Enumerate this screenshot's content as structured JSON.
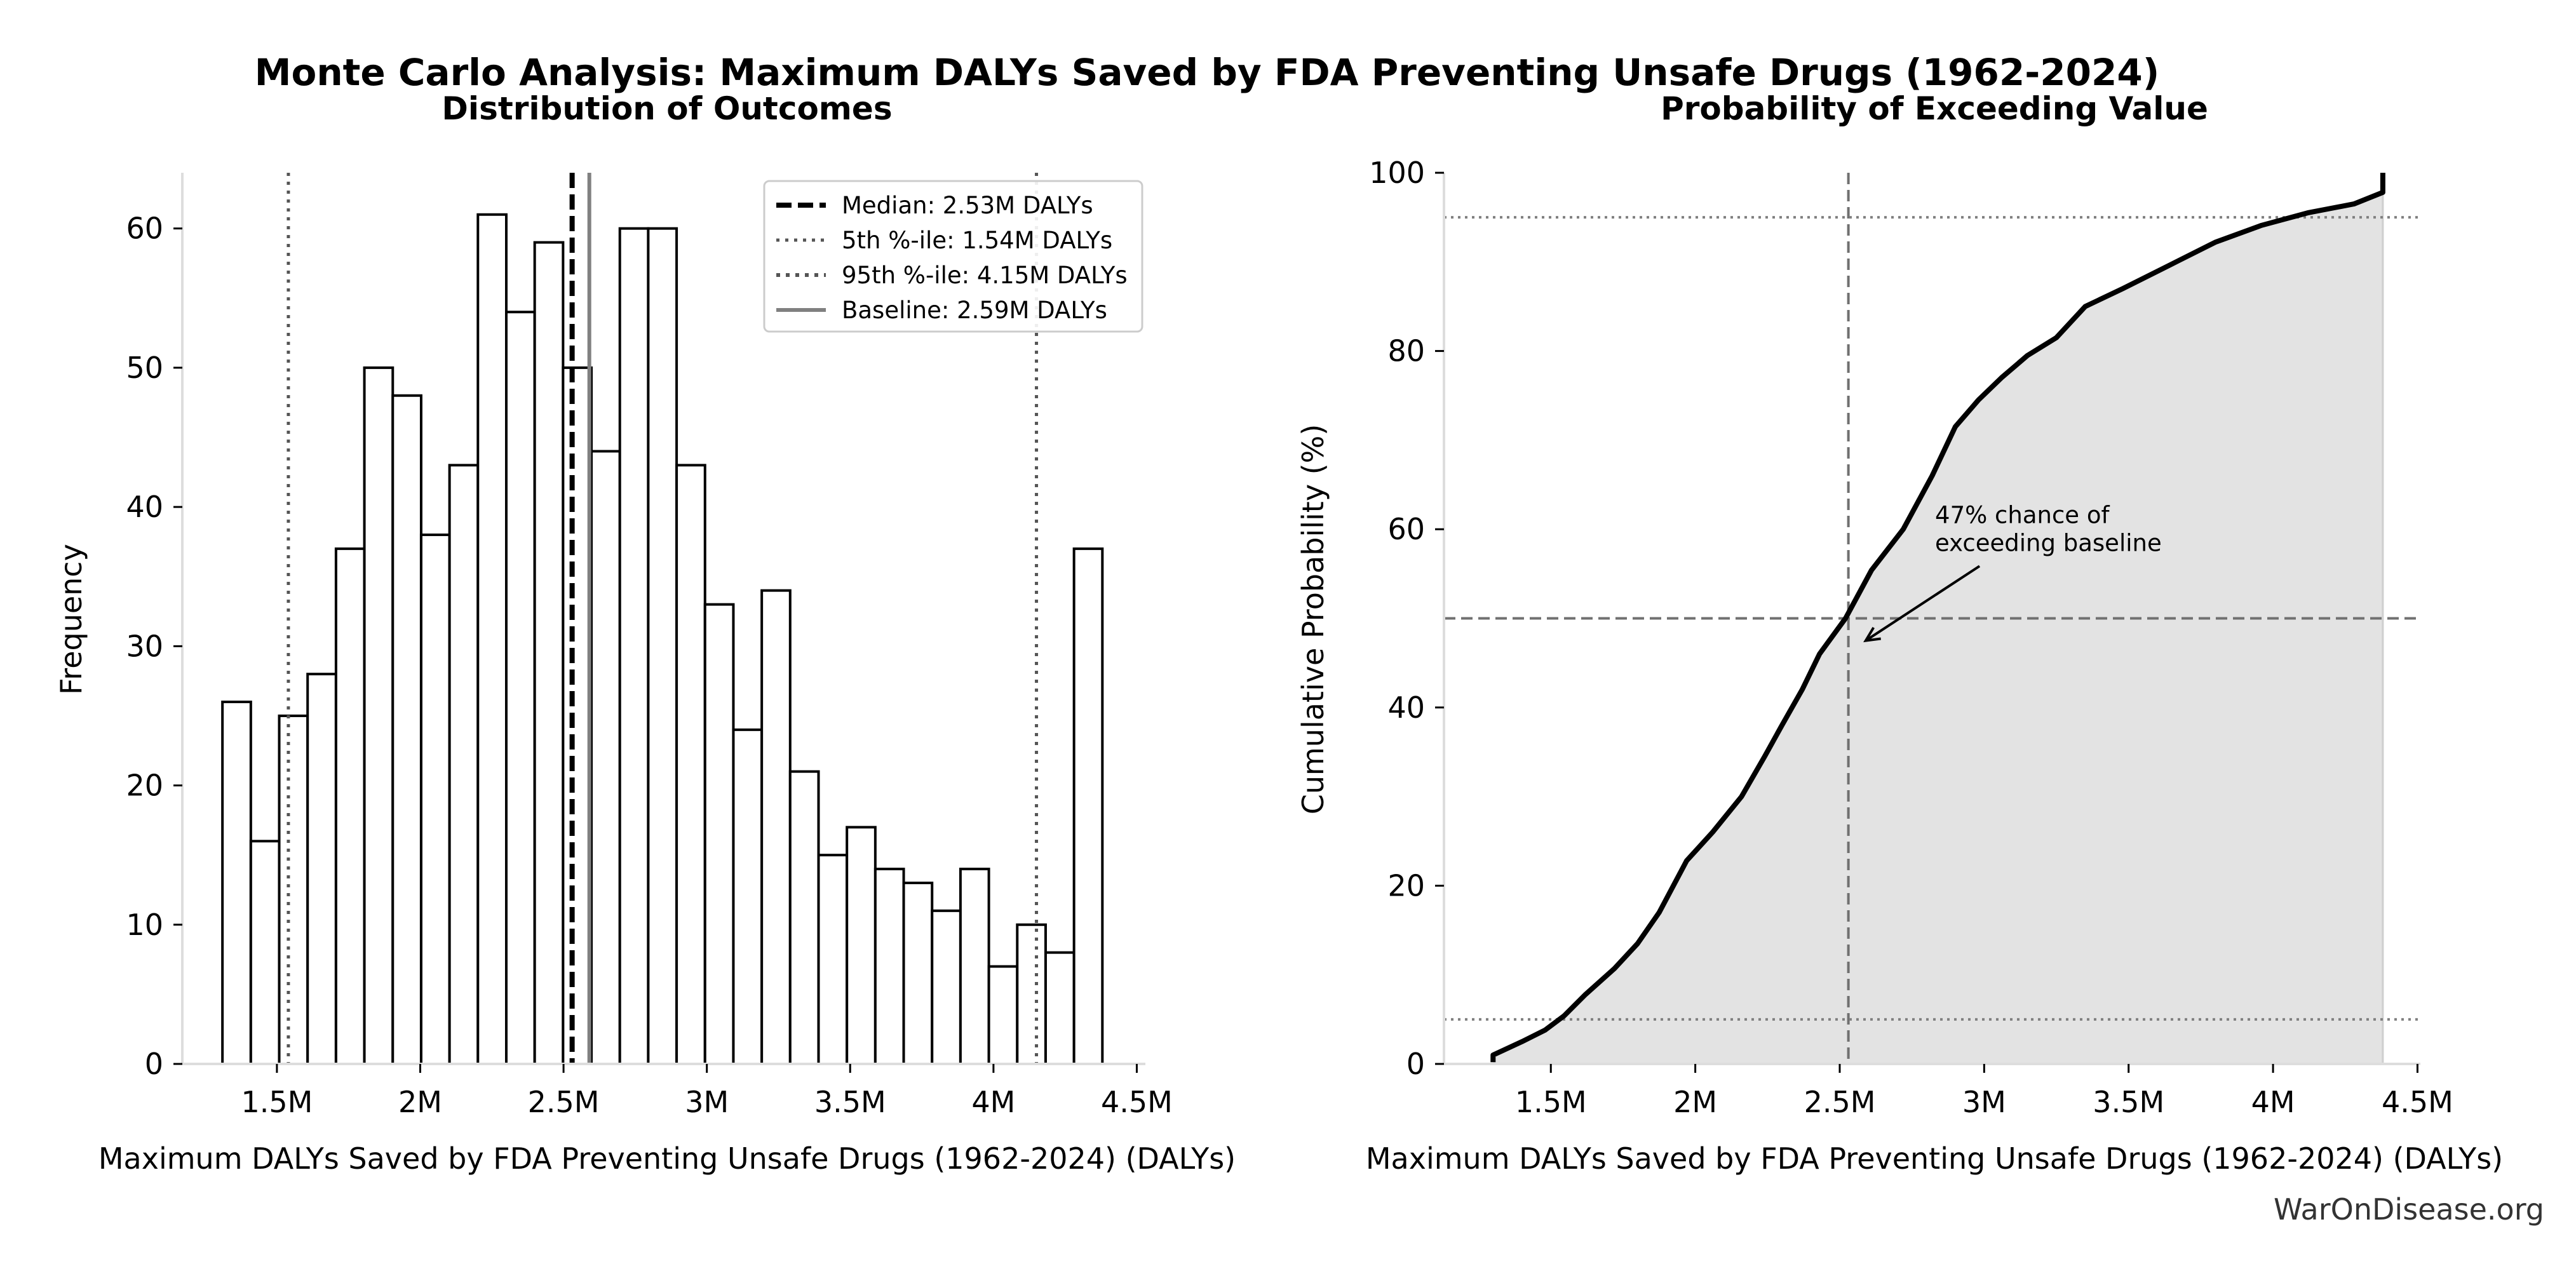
{
  "figure": {
    "title": "Monte Carlo Analysis: Maximum DALYs Saved by FDA Preventing Unsafe Drugs (1962-2024)",
    "watermark": "WarOnDisease.org"
  },
  "chart_data": [
    {
      "type": "bar",
      "subtype": "histogram",
      "title": "Distribution of Outcomes",
      "xlabel": "Maximum DALYs Saved by FDA Preventing Unsafe Drugs (1962-2024) (DALYs)",
      "ylabel": "Frequency",
      "xlim": [
        1.17,
        4.53
      ],
      "ylim": [
        0,
        64
      ],
      "x_unit": "million DALYs",
      "xticks": [
        1.5,
        2.0,
        2.5,
        3.0,
        3.5,
        4.0,
        4.5
      ],
      "xtick_labels": [
        "1.5M",
        "2M",
        "2.5M",
        "3M",
        "3.5M",
        "4M",
        "4.5M"
      ],
      "yticks": [
        0,
        10,
        20,
        30,
        40,
        50,
        60
      ],
      "ytick_labels": [
        "0",
        "10",
        "20",
        "30",
        "40",
        "50",
        "60"
      ],
      "bin_start": 1.31,
      "bin_end": 4.38,
      "values": [
        26,
        16,
        25,
        28,
        37,
        50,
        48,
        38,
        43,
        61,
        54,
        59,
        50,
        44,
        60,
        60,
        43,
        33,
        24,
        34,
        21,
        15,
        17,
        14,
        13,
        11,
        14,
        7,
        10,
        8,
        37
      ],
      "reference_lines": [
        {
          "name": "median",
          "label": "Median: 2.53M DALYs",
          "x": 2.53,
          "style": "dashed",
          "color": "#000000"
        },
        {
          "name": "p5",
          "label": "5th %-ile: 1.54M DALYs",
          "x": 1.54,
          "style": "dotted",
          "color": "#555555"
        },
        {
          "name": "p95",
          "label": "95th %-ile: 4.15M DALYs",
          "x": 4.15,
          "style": "dotted",
          "color": "#555555"
        },
        {
          "name": "baseline",
          "label": "Baseline: 2.59M DALYs",
          "x": 2.59,
          "style": "solid",
          "color": "#808080"
        }
      ],
      "legend_position": "top-right",
      "grid": false
    },
    {
      "type": "area",
      "subtype": "cumulative-distribution",
      "title": "Probability of Exceeding Value",
      "xlabel": "Maximum DALYs Saved by FDA Preventing Unsafe Drugs (1962-2024) (DALYs)",
      "ylabel": "Cumulative Probability (%)",
      "xlim": [
        1.13,
        4.51
      ],
      "ylim": [
        0,
        100
      ],
      "x_unit": "million DALYs",
      "xticks": [
        1.5,
        2.0,
        2.5,
        3.0,
        3.5,
        4.0,
        4.5
      ],
      "xtick_labels": [
        "1.5M",
        "2M",
        "2.5M",
        "3M",
        "3.5M",
        "4M",
        "4.5M"
      ],
      "yticks": [
        0,
        20,
        40,
        60,
        80,
        100
      ],
      "ytick_labels": [
        "0",
        "20",
        "40",
        "60",
        "80",
        "100"
      ],
      "x": [
        1.3,
        1.3,
        1.4,
        1.48,
        1.546,
        1.62,
        1.72,
        1.8,
        1.875,
        1.97,
        2.06,
        2.16,
        2.24,
        2.3,
        2.37,
        2.43,
        2.52,
        2.61,
        2.72,
        2.82,
        2.9,
        2.98,
        3.06,
        3.15,
        3.25,
        3.35,
        3.48,
        3.64,
        3.8,
        3.96,
        4.12,
        4.28,
        4.38,
        4.38
      ],
      "y": [
        0.2,
        1.0,
        2.5,
        3.8,
        5.4,
        7.8,
        10.7,
        13.5,
        17.0,
        22.8,
        26.0,
        30.0,
        34.5,
        38.0,
        42.0,
        46.0,
        50.0,
        55.4,
        60.0,
        66.0,
        71.5,
        74.5,
        77.0,
        79.5,
        81.5,
        85.0,
        87.0,
        89.6,
        92.2,
        94.1,
        95.5,
        96.5,
        97.8,
        100.0
      ],
      "reference_lines": [
        {
          "name": "median-vertical",
          "x": 2.53,
          "style": "dashed",
          "color": "#707070"
        },
        {
          "name": "fifty-percent",
          "y": 50,
          "style": "dashed",
          "color": "#707070"
        },
        {
          "name": "p5-horizontal",
          "y": 5,
          "style": "dotted",
          "color": "#808080"
        },
        {
          "name": "p95-horizontal",
          "y": 95,
          "style": "dotted",
          "color": "#808080"
        }
      ],
      "annotation": {
        "lines": [
          "47% chance of",
          "exceeding baseline"
        ],
        "arrow_to": {
          "x": 2.59,
          "y": 47.5
        },
        "text_at": {
          "x": 2.83,
          "y": 58
        }
      },
      "fill_color": "#e3e3e3",
      "line_color": "#000000",
      "grid": false
    }
  ]
}
